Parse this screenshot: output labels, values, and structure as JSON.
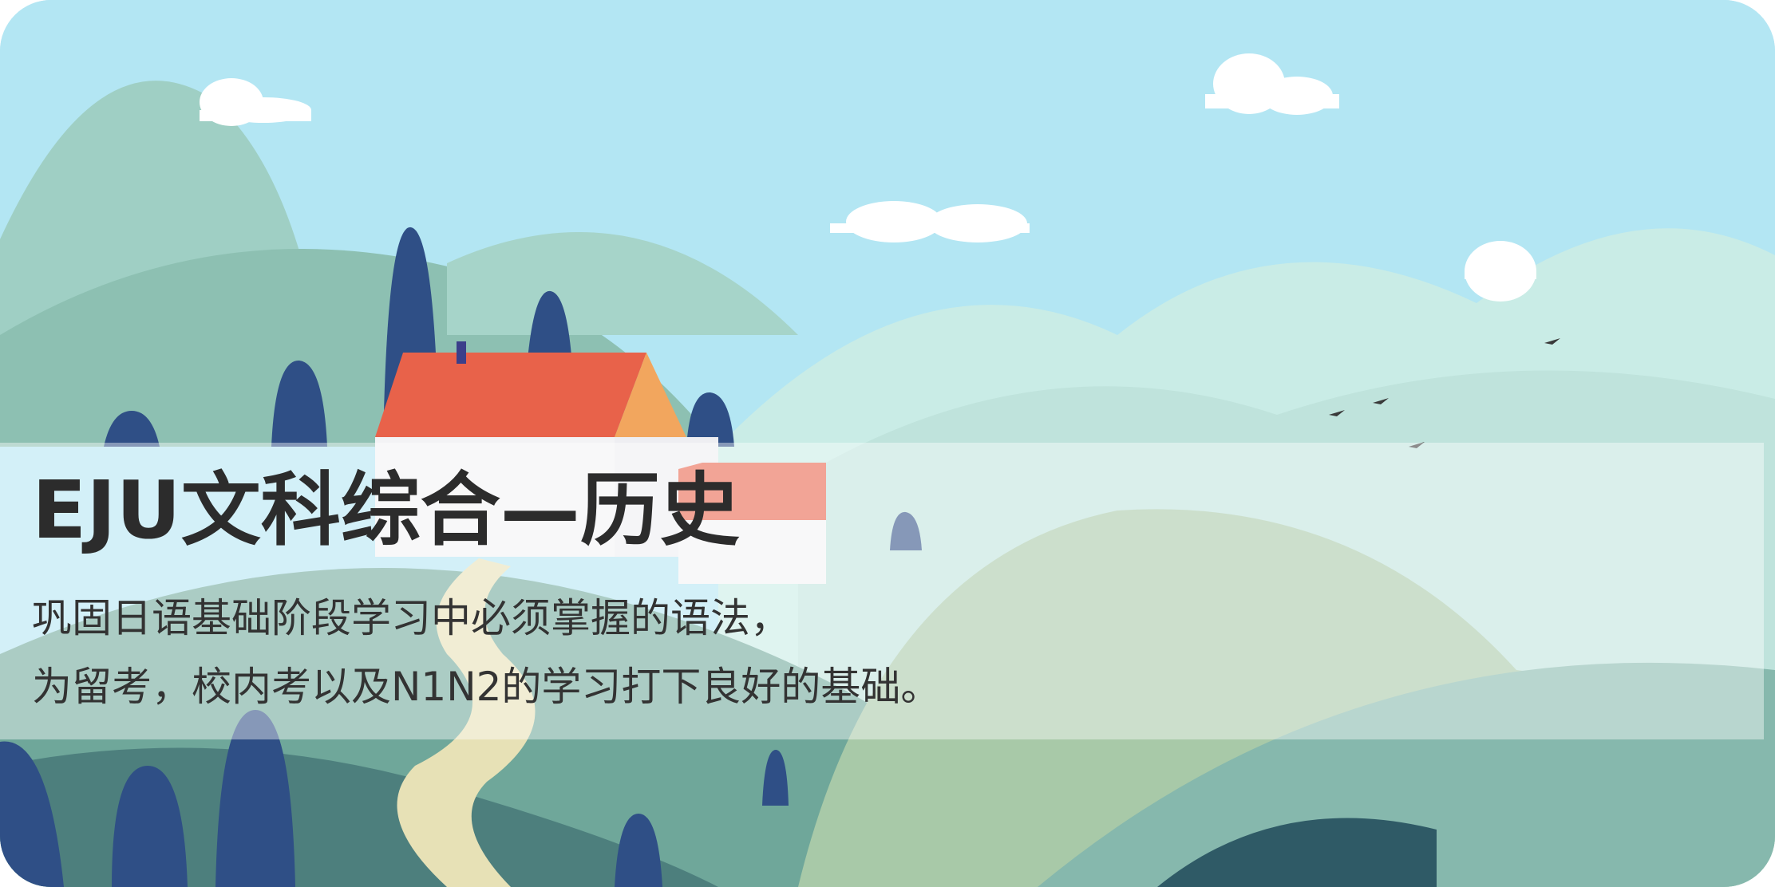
{
  "course_card": {
    "title": "EJU文科综合—历史",
    "description_lines": [
      "巩固日语基础阶段学习中必须掌握的语法，",
      "为留考，校内考以及N1N2的学习打下良好的基础。"
    ]
  },
  "illustration": {
    "subject": "landscape with hills, trees, red-roofed house, clouds and birds",
    "colors": {
      "sky": "#aee3f2",
      "hills": "#7fb6a6",
      "trees": "#2f4f86",
      "roof": "#e8624a",
      "house": "#f4f4f6",
      "path": "#e6dfb4"
    }
  }
}
